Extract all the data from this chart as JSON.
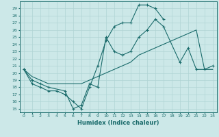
{
  "xlabel": "Humidex (Indice chaleur)",
  "xlim": [
    -0.5,
    23.5
  ],
  "ylim": [
    14.5,
    30.0
  ],
  "yticks": [
    15,
    16,
    17,
    18,
    19,
    20,
    21,
    22,
    23,
    24,
    25,
    26,
    27,
    28,
    29
  ],
  "xticks": [
    0,
    1,
    2,
    3,
    4,
    5,
    6,
    7,
    8,
    9,
    10,
    11,
    12,
    13,
    14,
    15,
    16,
    17,
    18,
    19,
    20,
    21,
    22,
    23
  ],
  "background_color": "#cce8e8",
  "grid_color": "#b0d4d4",
  "line_color": "#1a6b6b",
  "line1_x": [
    0,
    1,
    2,
    3,
    4,
    5,
    6,
    7,
    8,
    9,
    10,
    11,
    12,
    13,
    14,
    15,
    16,
    17
  ],
  "line1_y": [
    20.5,
    18.5,
    18.0,
    17.5,
    17.5,
    17.0,
    16.0,
    15.0,
    18.0,
    21.0,
    24.5,
    26.5,
    27.0,
    27.0,
    29.5,
    29.5,
    29.0,
    27.5
  ],
  "line2_x": [
    0,
    1,
    2,
    3,
    5,
    6,
    7,
    8,
    9,
    10,
    11,
    12,
    13,
    14,
    15,
    16,
    17,
    19,
    20,
    21,
    22,
    23
  ],
  "line2_y": [
    20.5,
    19.0,
    18.5,
    18.0,
    17.5,
    15.0,
    15.5,
    18.5,
    18.0,
    25.0,
    23.0,
    22.5,
    23.0,
    25.0,
    26.0,
    27.5,
    26.5,
    21.5,
    23.5,
    20.5,
    20.5,
    21.0
  ],
  "line3_x": [
    0,
    1,
    2,
    3,
    4,
    5,
    6,
    7,
    8,
    9,
    10,
    11,
    12,
    13,
    14,
    15,
    16,
    17,
    18,
    19,
    20,
    21,
    22,
    23
  ],
  "line3_y": [
    20.5,
    19.5,
    19.0,
    18.5,
    18.5,
    18.5,
    18.5,
    18.5,
    19.0,
    19.5,
    20.0,
    20.5,
    21.0,
    21.5,
    22.5,
    23.0,
    23.5,
    24.0,
    24.5,
    25.0,
    25.5,
    26.0,
    20.5,
    20.5
  ]
}
